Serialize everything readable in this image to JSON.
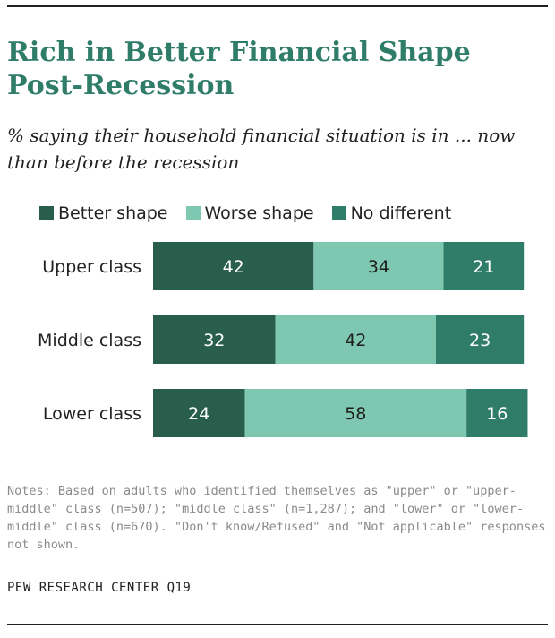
{
  "title": "Rich in Better Financial Shape Post-Recession",
  "subtitle": "% saying their household financial situation is in ... now than before the recession",
  "colors": {
    "better": "#2a5e4c",
    "worse": "#7ec7b0",
    "no_diff": "#2f7d68",
    "title": "#2f7d68"
  },
  "chart_data": {
    "type": "bar",
    "orientation": "horizontal",
    "stacked": true,
    "legend_position": "top",
    "categories": [
      "Upper class",
      "Middle class",
      "Lower class"
    ],
    "series": [
      {
        "name": "Better shape",
        "values": [
          42,
          32,
          24
        ]
      },
      {
        "name": "Worse shape",
        "values": [
          34,
          42,
          58
        ]
      },
      {
        "name": "No different",
        "values": [
          21,
          23,
          16
        ]
      }
    ],
    "xlim": [
      0,
      100
    ],
    "grid": false
  },
  "notes": "Notes: Based on adults who identified themselves as \"upper\" or \"upper-middle\" class (n=507); \"middle class\" (n=1,287); and \"lower\" or \"lower-middle\" class (n=670). \"Don't know/Refused\" and \"Not applicable\" responses not shown.",
  "source": "PEW RESEARCH CENTER Q19"
}
